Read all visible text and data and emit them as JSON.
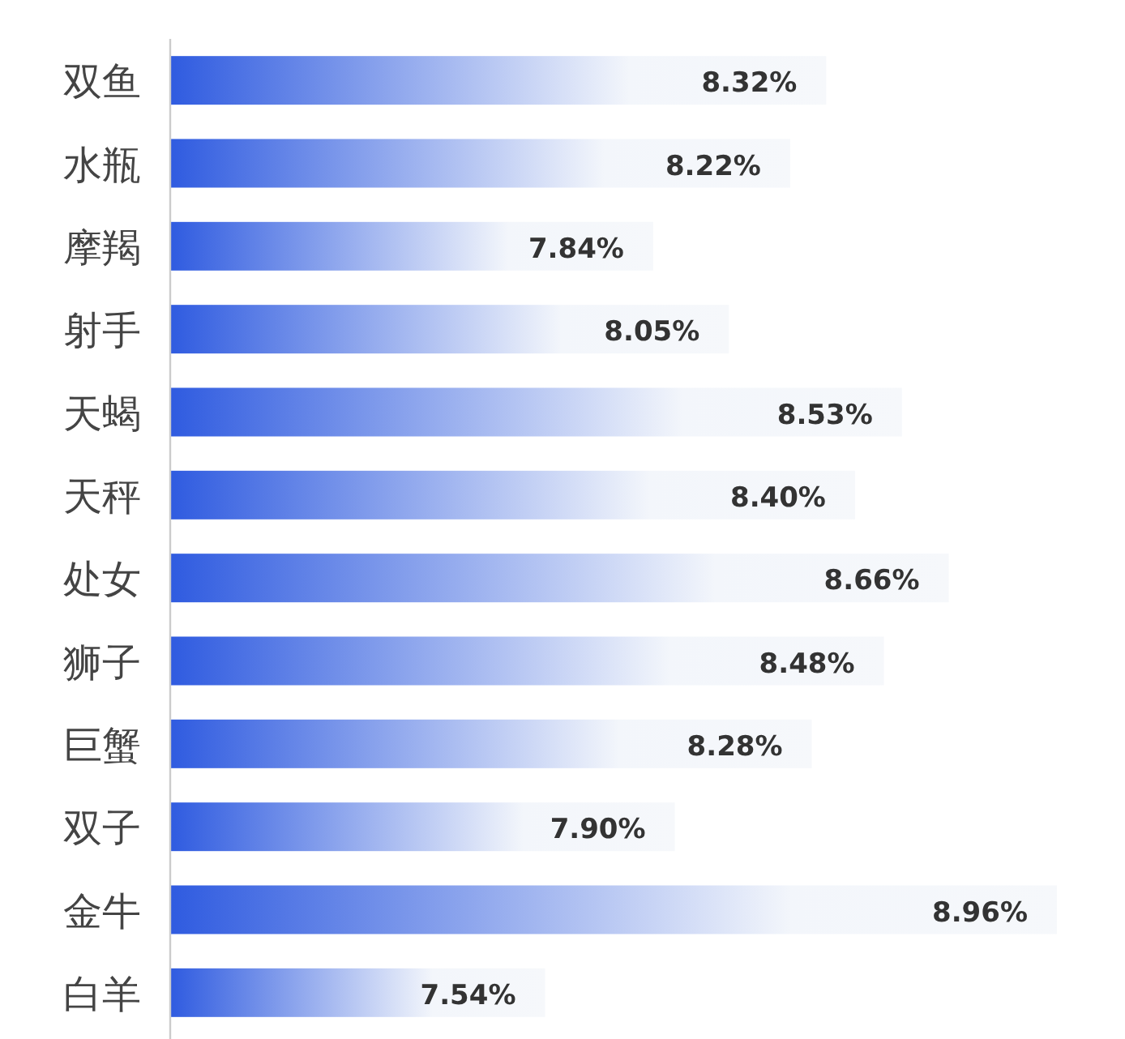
{
  "chart_data": {
    "type": "bar",
    "orientation": "horizontal",
    "categories": [
      "双鱼",
      "水瓶",
      "摩羯",
      "射手",
      "天蝎",
      "天秤",
      "处女",
      "狮子",
      "巨蟹",
      "双子",
      "金牛",
      "白羊"
    ],
    "values": [
      8.32,
      8.22,
      7.84,
      8.05,
      8.53,
      8.4,
      8.66,
      8.48,
      8.28,
      7.9,
      8.96,
      7.54
    ],
    "value_labels": [
      "8.32%",
      "8.22%",
      "7.84%",
      "8.05%",
      "8.53%",
      "8.40%",
      "8.66%",
      "8.48%",
      "8.28%",
      "7.90%",
      "8.96%",
      "7.54%"
    ],
    "color": "#2f5be0",
    "xlim": [
      6.5,
      8.96
    ]
  }
}
